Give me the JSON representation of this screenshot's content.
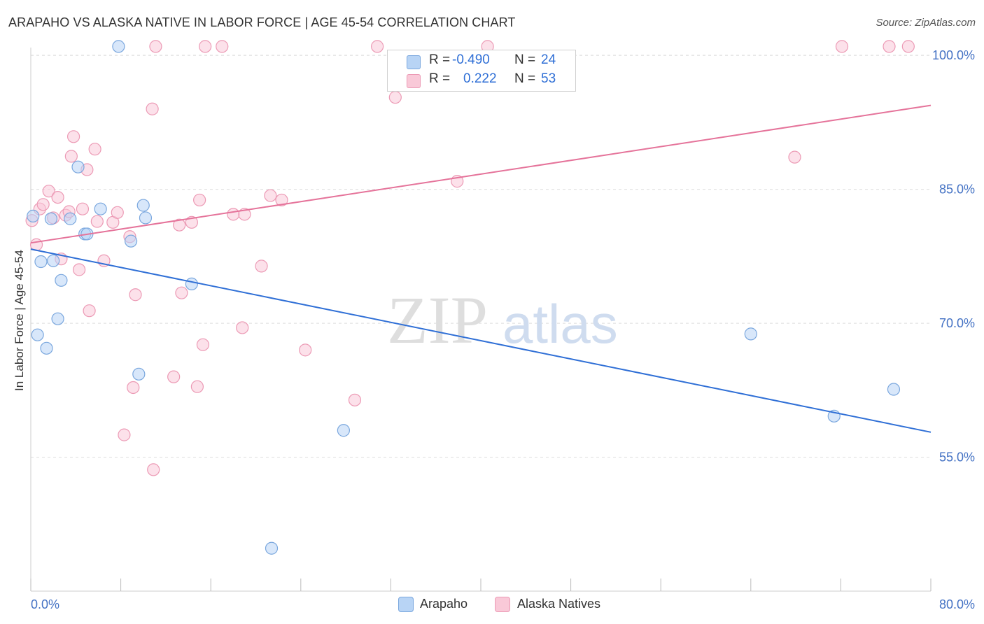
{
  "title": "ARAPAHO VS ALASKA NATIVE IN LABOR FORCE | AGE 45-54 CORRELATION CHART",
  "source": "Source: ZipAtlas.com",
  "watermark": {
    "zip": "ZIP",
    "atlas": "atlas"
  },
  "legend": {
    "rows": [
      {
        "r_label": "R =",
        "r_value": "-0.490",
        "n_label": "N =",
        "n_value": "24"
      },
      {
        "r_label": "R =",
        "r_value": "0.222",
        "n_label": "N =",
        "n_value": "53"
      }
    ]
  },
  "colors": {
    "arapaho_fill": "#b8d4f5",
    "arapaho_stroke": "#7aa7de",
    "arapaho_line": "#2f6fd6",
    "alaska_fill": "#f9c9d8",
    "alaska_stroke": "#ec9ab5",
    "alaska_line": "#e5739a",
    "grid": "#dddddd",
    "tick_text": "#4472c4"
  },
  "chart_data": {
    "type": "scatter",
    "title": "ARAPAHO VS ALASKA NATIVE IN LABOR FORCE | AGE 45-54 CORRELATION CHART",
    "xlabel": "",
    "ylabel": "In Labor Force | Age 45-54",
    "xlim": [
      0,
      80
    ],
    "ylim": [
      40,
      101.5
    ],
    "x_tick_labels": [
      "0.0%",
      "80.0%"
    ],
    "y_ticks": [
      55,
      70,
      85,
      100
    ],
    "y_tick_labels": [
      "55.0%",
      "70.0%",
      "85.0%",
      "100.0%"
    ],
    "grid": true,
    "legend_position": "bottom-center",
    "series": [
      {
        "name": "Arapaho",
        "r": -0.49,
        "n": 24,
        "trend": {
          "x": [
            0,
            80
          ],
          "y": [
            78.3,
            57.8
          ]
        },
        "points": [
          {
            "x": 0.2,
            "y": 82.0
          },
          {
            "x": 0.6,
            "y": 68.7
          },
          {
            "x": 0.9,
            "y": 76.9
          },
          {
            "x": 1.4,
            "y": 67.2
          },
          {
            "x": 1.8,
            "y": 81.7
          },
          {
            "x": 2.0,
            "y": 77.0
          },
          {
            "x": 2.4,
            "y": 70.5
          },
          {
            "x": 2.7,
            "y": 74.8
          },
          {
            "x": 3.5,
            "y": 81.7
          },
          {
            "x": 4.2,
            "y": 87.5
          },
          {
            "x": 4.8,
            "y": 80.0
          },
          {
            "x": 5.0,
            "y": 80.0
          },
          {
            "x": 6.2,
            "y": 82.8
          },
          {
            "x": 7.8,
            "y": 101.0
          },
          {
            "x": 8.9,
            "y": 79.2
          },
          {
            "x": 9.6,
            "y": 64.3
          },
          {
            "x": 10.0,
            "y": 83.2
          },
          {
            "x": 10.2,
            "y": 81.8
          },
          {
            "x": 14.3,
            "y": 74.4
          },
          {
            "x": 21.4,
            "y": 44.8
          },
          {
            "x": 27.8,
            "y": 58.0
          },
          {
            "x": 64.0,
            "y": 68.8
          },
          {
            "x": 71.4,
            "y": 59.6
          },
          {
            "x": 76.7,
            "y": 62.6
          }
        ]
      },
      {
        "name": "Alaska Natives",
        "r": 0.222,
        "n": 53,
        "trend": {
          "x": [
            0,
            80
          ],
          "y": [
            79.0,
            94.4
          ]
        },
        "points": [
          {
            "x": 0.1,
            "y": 81.5
          },
          {
            "x": 0.5,
            "y": 78.8
          },
          {
            "x": 0.8,
            "y": 82.8
          },
          {
            "x": 1.1,
            "y": 83.3
          },
          {
            "x": 1.6,
            "y": 84.8
          },
          {
            "x": 2.0,
            "y": 81.8
          },
          {
            "x": 2.4,
            "y": 84.1
          },
          {
            "x": 2.7,
            "y": 77.2
          },
          {
            "x": 3.1,
            "y": 82.1
          },
          {
            "x": 3.4,
            "y": 82.5
          },
          {
            "x": 3.6,
            "y": 88.7
          },
          {
            "x": 3.8,
            "y": 90.9
          },
          {
            "x": 4.3,
            "y": 76.0
          },
          {
            "x": 4.6,
            "y": 82.8
          },
          {
            "x": 5.0,
            "y": 87.2
          },
          {
            "x": 5.2,
            "y": 71.4
          },
          {
            "x": 5.7,
            "y": 89.5
          },
          {
            "x": 5.9,
            "y": 81.4
          },
          {
            "x": 6.5,
            "y": 77.0
          },
          {
            "x": 7.3,
            "y": 81.3
          },
          {
            "x": 7.7,
            "y": 82.4
          },
          {
            "x": 8.3,
            "y": 57.5
          },
          {
            "x": 8.8,
            "y": 79.7
          },
          {
            "x": 9.1,
            "y": 62.8
          },
          {
            "x": 9.3,
            "y": 73.2
          },
          {
            "x": 10.8,
            "y": 94.0
          },
          {
            "x": 10.9,
            "y": 53.6
          },
          {
            "x": 11.1,
            "y": 101.0
          },
          {
            "x": 12.7,
            "y": 64.0
          },
          {
            "x": 13.2,
            "y": 81.0
          },
          {
            "x": 13.4,
            "y": 73.4
          },
          {
            "x": 14.3,
            "y": 81.3
          },
          {
            "x": 14.8,
            "y": 62.9
          },
          {
            "x": 15.0,
            "y": 83.8
          },
          {
            "x": 15.3,
            "y": 67.6
          },
          {
            "x": 15.5,
            "y": 101.0
          },
          {
            "x": 17.0,
            "y": 101.0
          },
          {
            "x": 18.0,
            "y": 82.2
          },
          {
            "x": 18.8,
            "y": 69.5
          },
          {
            "x": 19.0,
            "y": 82.2
          },
          {
            "x": 20.5,
            "y": 76.4
          },
          {
            "x": 21.3,
            "y": 84.3
          },
          {
            "x": 22.3,
            "y": 83.8
          },
          {
            "x": 24.4,
            "y": 67.0
          },
          {
            "x": 28.8,
            "y": 61.4
          },
          {
            "x": 30.8,
            "y": 101.0
          },
          {
            "x": 32.4,
            "y": 95.3
          },
          {
            "x": 37.9,
            "y": 85.9
          },
          {
            "x": 40.6,
            "y": 101.0
          },
          {
            "x": 67.9,
            "y": 88.6
          },
          {
            "x": 72.1,
            "y": 101.0
          },
          {
            "x": 76.3,
            "y": 101.0
          },
          {
            "x": 78.0,
            "y": 101.0
          }
        ]
      }
    ]
  }
}
